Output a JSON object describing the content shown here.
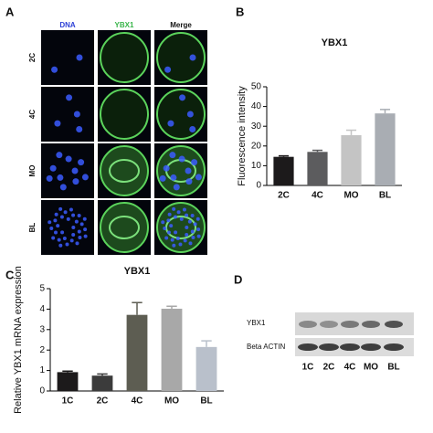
{
  "panel_a": {
    "letter": "A",
    "columns": [
      "DNA",
      "YBX1",
      "Merge"
    ],
    "rows": [
      "2C",
      "4C",
      "MO",
      "BL"
    ]
  },
  "panel_d": {
    "letter": "D",
    "rows": [
      "YBX1",
      "Beta ACTIN"
    ],
    "lanes": [
      "1C",
      "2C",
      "4C",
      "MO",
      "BL"
    ]
  },
  "chart_data": [
    {
      "type": "bar",
      "letter": "B",
      "title": "YBX1",
      "y_label": "Fluorescence intensity",
      "categories": [
        "2C",
        "4C",
        "MO",
        "BL"
      ],
      "values": [
        14.5,
        17,
        25.5,
        36.5
      ],
      "errors": [
        0.5,
        0.8,
        2.5,
        2
      ],
      "colors": [
        "#1c1a1b",
        "#5c5c5e",
        "#c4c4c4",
        "#a9adb3"
      ],
      "ylim": [
        0,
        50
      ],
      "yticks": [
        0,
        10,
        20,
        30,
        40,
        50
      ]
    },
    {
      "type": "bar",
      "letter": "C",
      "title": "YBX1",
      "y_label": "Relative YBX1 mRNA expression",
      "categories": [
        "1C",
        "2C",
        "4C",
        "MO",
        "BL"
      ],
      "values": [
        0.92,
        0.75,
        3.72,
        4.02,
        2.15
      ],
      "errors": [
        0.05,
        0.08,
        0.6,
        0.12,
        0.3
      ],
      "colors": [
        "#1c1a1b",
        "#3b3b3b",
        "#5d5d52",
        "#a8a8a8",
        "#b9c0cb"
      ],
      "ylim": [
        0,
        5
      ],
      "yticks": [
        0,
        1,
        2,
        3,
        4,
        5
      ]
    }
  ]
}
